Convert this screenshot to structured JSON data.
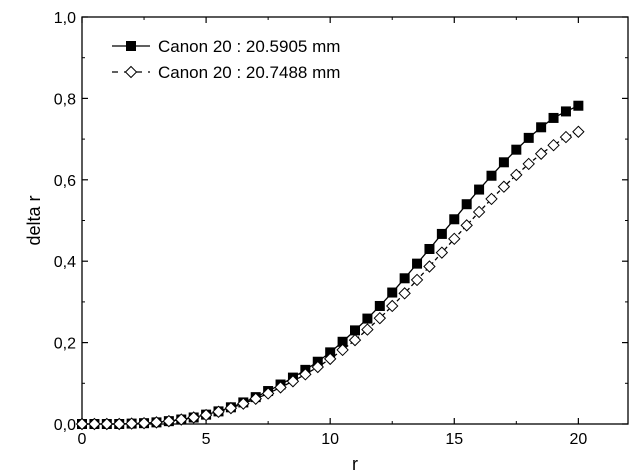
{
  "chart_data": {
    "type": "line",
    "title": "",
    "xlabel": "r",
    "ylabel": "delta r",
    "xlim": [
      0,
      22
    ],
    "ylim": [
      0,
      1.0
    ],
    "x_ticks": [
      "0",
      "5",
      "10",
      "15",
      "20"
    ],
    "y_ticks": [
      "0,0",
      "0,2",
      "0,4",
      "0,6",
      "0,8",
      "1,0"
    ],
    "legend_position": "top-left",
    "grid": false,
    "x": [
      0,
      0.5,
      1,
      1.5,
      2,
      2.5,
      3,
      3.5,
      4,
      4.5,
      5,
      5.5,
      6,
      6.5,
      7,
      7.5,
      8,
      8.5,
      9,
      9.5,
      10,
      10.5,
      11,
      11.5,
      12,
      12.5,
      13,
      13.5,
      14,
      14.5,
      15,
      15.5,
      16,
      16.5,
      17,
      17.5,
      18,
      18.5,
      19,
      19.5,
      20
    ],
    "series": [
      {
        "name": "Canon 20 : 20.5905 mm",
        "marker": "filled-square",
        "line": "solid",
        "values": [
          0.0,
          0.0,
          0.0,
          0.0,
          0.001,
          0.002,
          0.004,
          0.007,
          0.011,
          0.016,
          0.023,
          0.031,
          0.041,
          0.053,
          0.066,
          0.081,
          0.097,
          0.114,
          0.133,
          0.153,
          0.176,
          0.202,
          0.23,
          0.259,
          0.29,
          0.323,
          0.358,
          0.394,
          0.43,
          0.467,
          0.503,
          0.54,
          0.576,
          0.61,
          0.643,
          0.674,
          0.703,
          0.729,
          0.752,
          0.768,
          0.782
        ]
      },
      {
        "name": "Canon 20 : 20.7488 mm",
        "marker": "open-diamond",
        "line": "dashed",
        "values": [
          0.0,
          0.0,
          0.0,
          0.0,
          0.001,
          0.002,
          0.004,
          0.007,
          0.011,
          0.016,
          0.022,
          0.03,
          0.039,
          0.05,
          0.062,
          0.075,
          0.09,
          0.105,
          0.122,
          0.14,
          0.16,
          0.182,
          0.206,
          0.232,
          0.26,
          0.29,
          0.321,
          0.354,
          0.387,
          0.421,
          0.455,
          0.488,
          0.521,
          0.553,
          0.583,
          0.612,
          0.639,
          0.664,
          0.685,
          0.705,
          0.718
        ]
      }
    ]
  }
}
